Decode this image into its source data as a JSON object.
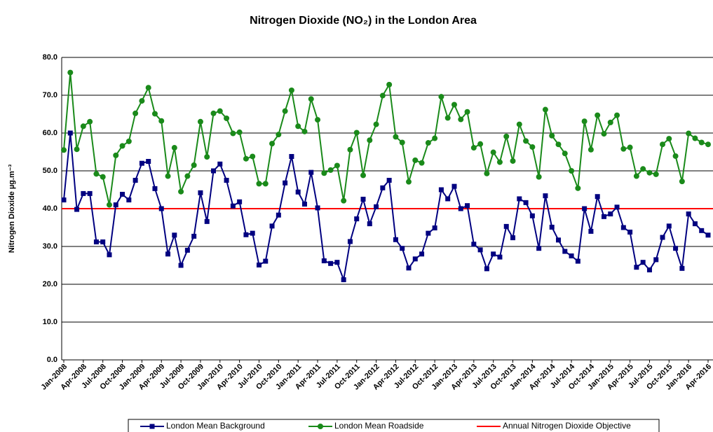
{
  "chart_data": {
    "type": "line",
    "title": "Nitrogen Dioxide (NO₂) in the London Area",
    "y_label": "Nitrogen Dioxide µg.m⁻³",
    "categories": [
      "Jan-2008",
      null,
      null,
      "Apr-2008",
      null,
      null,
      "Jul-2008",
      null,
      null,
      "Oct-2008",
      null,
      null,
      "Jan-2009",
      null,
      null,
      "Apr-2009",
      null,
      null,
      "Jul-2009",
      null,
      null,
      "Oct-2009",
      null,
      null,
      "Jan-2010",
      null,
      null,
      "Apr-2010",
      null,
      null,
      "Jul-2010",
      null,
      null,
      "Oct-2010",
      null,
      null,
      "Jan-2011",
      null,
      null,
      "Apr-2011",
      null,
      null,
      "Jul-2011",
      null,
      null,
      "Oct-2011",
      null,
      null,
      "Jan-2012",
      null,
      null,
      "Apr-2012",
      null,
      null,
      "Jul-2012",
      null,
      null,
      "Oct-2012",
      null,
      null,
      "Jan-2013",
      null,
      null,
      "Apr-2013",
      null,
      null,
      "Jul-2013",
      null,
      null,
      "Oct-2013",
      null,
      null,
      "Jan-2014",
      null,
      null,
      "Apr-2014",
      null,
      null,
      "Jul-2014",
      null,
      null,
      "Oct-2014",
      null,
      null,
      "Jan-2015",
      null,
      null,
      "Apr-2015",
      null,
      null,
      "Jul-2015",
      null,
      null,
      "Oct-2015",
      null,
      null,
      "Jan-2016",
      null,
      null,
      "Apr-2016"
    ],
    "series": [
      {
        "name": "London Mean Background",
        "color": "#000080",
        "marker": "square",
        "values": [
          42.3,
          60,
          39.8,
          44,
          44,
          31.2,
          31.2,
          27.8,
          41,
          43.8,
          42.3,
          47.5,
          52,
          52.5,
          45.3,
          40,
          28,
          33,
          25,
          29,
          32.7,
          44.2,
          36.6,
          50,
          51.8,
          47.5,
          40.7,
          41.8,
          33.1,
          33.5,
          25.1,
          26.1,
          35.4,
          38.3,
          46.8,
          53.8,
          44.4,
          41.2,
          49.6,
          40.2,
          26.2,
          25.5,
          25.8,
          21.2,
          31.3,
          37.3,
          42.5,
          36,
          40.5,
          45.5,
          47.5,
          31.8,
          29.5,
          24.3,
          26.7,
          28,
          33.5,
          34.9,
          45,
          42.6,
          45.9,
          40,
          40.8,
          30.6,
          29.1,
          24.1,
          28,
          27.2,
          35.3,
          32.3,
          42.6,
          41.6,
          38.1,
          29.5,
          43.4,
          35.1,
          31.7,
          28.7,
          27.5,
          26.1,
          40,
          34,
          43.2,
          37.9,
          38.6,
          40.4,
          35,
          33.8,
          24.5,
          25.8,
          23.8,
          26.5,
          32.4,
          35.4,
          29.5,
          24.2,
          38.6,
          36,
          34.2,
          33
        ]
      },
      {
        "name": "London Mean Roadside",
        "color": "#1a8a1a",
        "marker": "circle",
        "values": [
          55.5,
          76,
          55.7,
          61.8,
          63,
          49.2,
          48.4,
          41,
          54.1,
          56.6,
          57.8,
          65.2,
          68.5,
          72,
          65.1,
          63.2,
          48.6,
          56.1,
          44.5,
          48.6,
          51.5,
          63,
          53.7,
          65.2,
          65.8,
          63.9,
          59.9,
          60.2,
          53.2,
          53.8,
          46.6,
          46.6,
          57.2,
          59.6,
          65.8,
          71.3,
          61.8,
          60.4,
          69,
          63.5,
          49.4,
          50.2,
          51.4,
          42.1,
          55.6,
          60.1,
          48.8,
          58.1,
          62.3,
          69.9,
          72.8,
          59,
          57.5,
          47.1,
          52.8,
          52.1,
          57.4,
          58.6,
          69.6,
          64,
          67.5,
          63.6,
          65.6,
          56.1,
          57.1,
          49.3,
          54.9,
          52.3,
          59.1,
          52.6,
          62.3,
          57.9,
          56.3,
          48.4,
          66.2,
          59.3,
          57,
          54.6,
          50,
          45.4,
          63.1,
          55.6,
          64.7,
          59.8,
          62.8,
          64.7,
          55.8,
          56.2,
          48.6,
          50.5,
          49.5,
          49.1,
          57,
          58.5,
          53.9,
          47.2,
          59.9,
          58.6,
          57.5,
          57
        ]
      }
    ],
    "reference_line": {
      "name": "Annual Nitrogen Dioxide Objective",
      "color": "#ff0000",
      "value": 40
    },
    "ylim": [
      0,
      80
    ],
    "yticks": [
      {
        "value": 0,
        "label": "0.0"
      },
      {
        "value": 10,
        "label": "10.0"
      },
      {
        "value": 20,
        "label": "20.0"
      },
      {
        "value": 30,
        "label": "30.0"
      },
      {
        "value": 40,
        "label": "40.0"
      },
      {
        "value": 50,
        "label": "50.0"
      },
      {
        "value": 60,
        "label": "60.0"
      },
      {
        "value": 70,
        "label": "70.0"
      },
      {
        "value": 80,
        "label": "80.0"
      }
    ],
    "grid": true
  }
}
